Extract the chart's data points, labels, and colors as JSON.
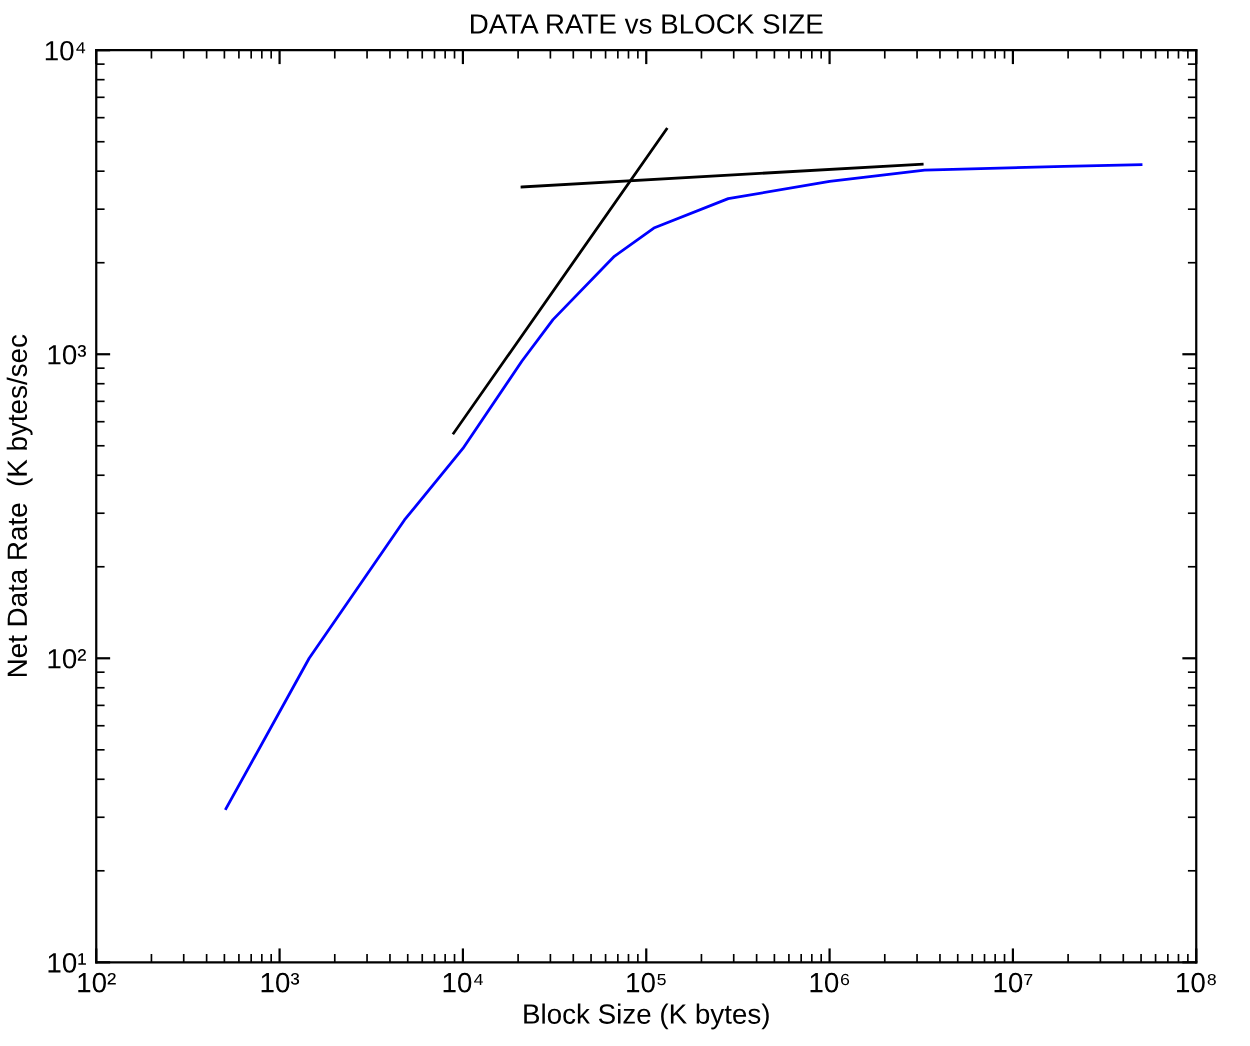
{
  "chart_data": {
    "type": "line",
    "title": "DATA RATE vs BLOCK SIZE",
    "xlabel": "Block Size (K bytes)",
    "ylabel": "Net Data Rate  (K bytes/sec",
    "log": "xy",
    "grid": false,
    "marker": "none",
    "line_style": "solid",
    "xlim": [
      100,
      100000000
    ],
    "ylim": [
      10,
      10000
    ],
    "xticks": [
      {
        "value": 100,
        "label": "10²"
      },
      {
        "value": 1000,
        "label": "10³"
      },
      {
        "value": 10000,
        "label": "10⁴"
      },
      {
        "value": 100000,
        "label": "10⁵"
      },
      {
        "value": 1000000,
        "label": "10⁶"
      },
      {
        "value": 10000000,
        "label": "10⁷"
      },
      {
        "value": 100000000,
        "label": "10⁸"
      }
    ],
    "yticks": [
      {
        "value": 10,
        "label": "10¹"
      },
      {
        "value": 100,
        "label": "10²"
      },
      {
        "value": 1000,
        "label": "10³"
      },
      {
        "value": 10000,
        "label": "10⁴"
      }
    ],
    "series": [
      {
        "color": "#0000ff",
        "x": [
          510,
          1450,
          4800,
          10000,
          21000,
          31000,
          67000,
          110000,
          280000,
          1000000,
          3300000,
          19000000,
          50000000
        ],
        "values": [
          32,
          100,
          285,
          490,
          950,
          1300,
          2100,
          2600,
          3250,
          3700,
          4030,
          4150,
          4200
        ]
      },
      {
        "color": "#000000",
        "x": [
          8900,
          129000
        ],
        "values": [
          550,
          5500
        ]
      },
      {
        "color": "#000000",
        "x": [
          21000,
          3200000
        ],
        "values": [
          3550,
          4220
        ]
      }
    ]
  }
}
